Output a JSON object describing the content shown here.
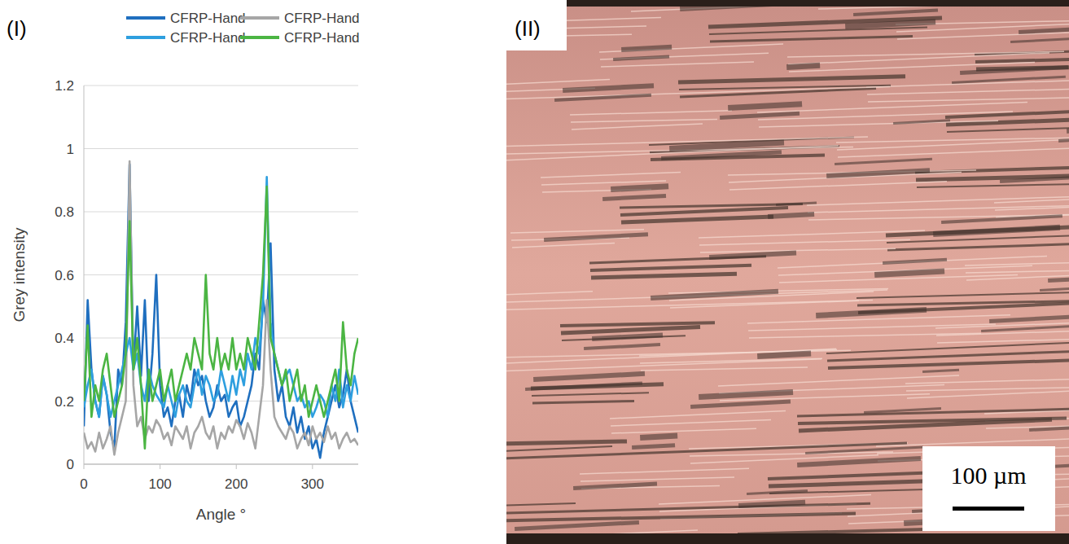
{
  "chart_data": {
    "type": "line",
    "panel_label": "(I)",
    "x_label": "Angle °",
    "y_label": "Grey intensity",
    "xlim": [
      0,
      360
    ],
    "xticks": [
      0,
      100,
      200,
      300
    ],
    "ylim": [
      0,
      1.2
    ],
    "yticks": [
      0,
      0.2,
      0.4,
      0.6,
      0.8,
      1,
      1.2
    ],
    "grid": true,
    "legend": "top",
    "x": [
      0,
      5,
      10,
      15,
      20,
      25,
      30,
      35,
      40,
      45,
      50,
      55,
      60,
      65,
      70,
      75,
      80,
      85,
      90,
      95,
      100,
      105,
      110,
      115,
      120,
      125,
      130,
      135,
      140,
      145,
      150,
      155,
      160,
      165,
      170,
      175,
      180,
      185,
      190,
      195,
      200,
      205,
      210,
      215,
      220,
      225,
      230,
      235,
      240,
      245,
      250,
      255,
      260,
      265,
      270,
      275,
      280,
      285,
      290,
      295,
      300,
      305,
      310,
      315,
      320,
      325,
      330,
      335,
      340,
      345,
      350,
      355,
      360
    ],
    "series": [
      {
        "name": "CFRP-Hand",
        "color": "#1f6fbf",
        "values": [
          0.12,
          0.52,
          0.3,
          0.2,
          0.15,
          0.28,
          0.22,
          0.1,
          0.05,
          0.3,
          0.25,
          0.45,
          0.95,
          0.3,
          0.5,
          0.28,
          0.52,
          0.2,
          0.35,
          0.6,
          0.25,
          0.15,
          0.18,
          0.12,
          0.2,
          0.22,
          0.15,
          0.25,
          0.2,
          0.3,
          0.25,
          0.28,
          0.2,
          0.15,
          0.18,
          0.25,
          0.2,
          0.22,
          0.15,
          0.18,
          0.2,
          0.12,
          0.15,
          0.2,
          0.25,
          0.35,
          0.3,
          0.52,
          0.45,
          0.7,
          0.3,
          0.2,
          0.25,
          0.15,
          0.12,
          0.18,
          0.1,
          0.15,
          0.08,
          0.12,
          0.05,
          0.08,
          0.02,
          0.1,
          0.15,
          0.2,
          0.25,
          0.18,
          0.22,
          0.3,
          0.2,
          0.15,
          0.1
        ]
      },
      {
        "name": "CFRP-Hand",
        "color": "#a6a6a6",
        "values": [
          0.1,
          0.05,
          0.07,
          0.04,
          0.1,
          0.05,
          0.08,
          0.12,
          0.03,
          0.1,
          0.15,
          0.2,
          0.96,
          0.25,
          0.12,
          0.15,
          0.08,
          0.12,
          0.1,
          0.14,
          0.12,
          0.08,
          0.1,
          0.06,
          0.12,
          0.1,
          0.08,
          0.12,
          0.05,
          0.1,
          0.12,
          0.15,
          0.1,
          0.08,
          0.12,
          0.05,
          0.1,
          0.08,
          0.12,
          0.1,
          0.14,
          0.12,
          0.08,
          0.13,
          0.1,
          0.05,
          0.15,
          0.25,
          0.52,
          0.3,
          0.15,
          0.12,
          0.1,
          0.08,
          0.12,
          0.1,
          0.05,
          0.08,
          0.1,
          0.06,
          0.12,
          0.08,
          0.1,
          0.07,
          0.12,
          0.08,
          0.1,
          0.05,
          0.08,
          0.1,
          0.07,
          0.08,
          0.06
        ]
      },
      {
        "name": "CFRP-Hand",
        "color": "#2e9fdf",
        "values": [
          0.18,
          0.25,
          0.3,
          0.2,
          0.15,
          0.28,
          0.22,
          0.15,
          0.2,
          0.25,
          0.3,
          0.35,
          0.4,
          0.3,
          0.35,
          0.25,
          0.2,
          0.3,
          0.25,
          0.22,
          0.2,
          0.18,
          0.25,
          0.2,
          0.15,
          0.22,
          0.25,
          0.2,
          0.18,
          0.25,
          0.3,
          0.22,
          0.28,
          0.25,
          0.2,
          0.22,
          0.3,
          0.25,
          0.2,
          0.28,
          0.22,
          0.3,
          0.25,
          0.35,
          0.3,
          0.4,
          0.35,
          0.5,
          0.91,
          0.45,
          0.35,
          0.3,
          0.25,
          0.28,
          0.3,
          0.25,
          0.2,
          0.22,
          0.18,
          0.2,
          0.15,
          0.18,
          0.22,
          0.2,
          0.15,
          0.25,
          0.2,
          0.3,
          0.18,
          0.25,
          0.2,
          0.28,
          0.22
        ]
      },
      {
        "name": "CFRP-Hand",
        "color": "#4bb543",
        "values": [
          0.2,
          0.44,
          0.15,
          0.25,
          0.2,
          0.3,
          0.35,
          0.25,
          0.15,
          0.2,
          0.25,
          0.35,
          0.77,
          0.3,
          0.4,
          0.25,
          0.05,
          0.3,
          0.2,
          0.25,
          0.3,
          0.2,
          0.25,
          0.3,
          0.2,
          0.25,
          0.3,
          0.35,
          0.3,
          0.4,
          0.35,
          0.3,
          0.6,
          0.35,
          0.3,
          0.4,
          0.3,
          0.35,
          0.3,
          0.4,
          0.3,
          0.35,
          0.3,
          0.4,
          0.35,
          0.3,
          0.45,
          0.6,
          0.88,
          0.4,
          0.35,
          0.3,
          0.25,
          0.3,
          0.2,
          0.25,
          0.3,
          0.2,
          0.25,
          0.15,
          0.2,
          0.25,
          0.2,
          0.15,
          0.2,
          0.25,
          0.3,
          0.2,
          0.45,
          0.3,
          0.25,
          0.35,
          0.4
        ]
      }
    ]
  },
  "micrograph": {
    "panel_label": "(II)",
    "scale_bar_label": "100 µm"
  }
}
